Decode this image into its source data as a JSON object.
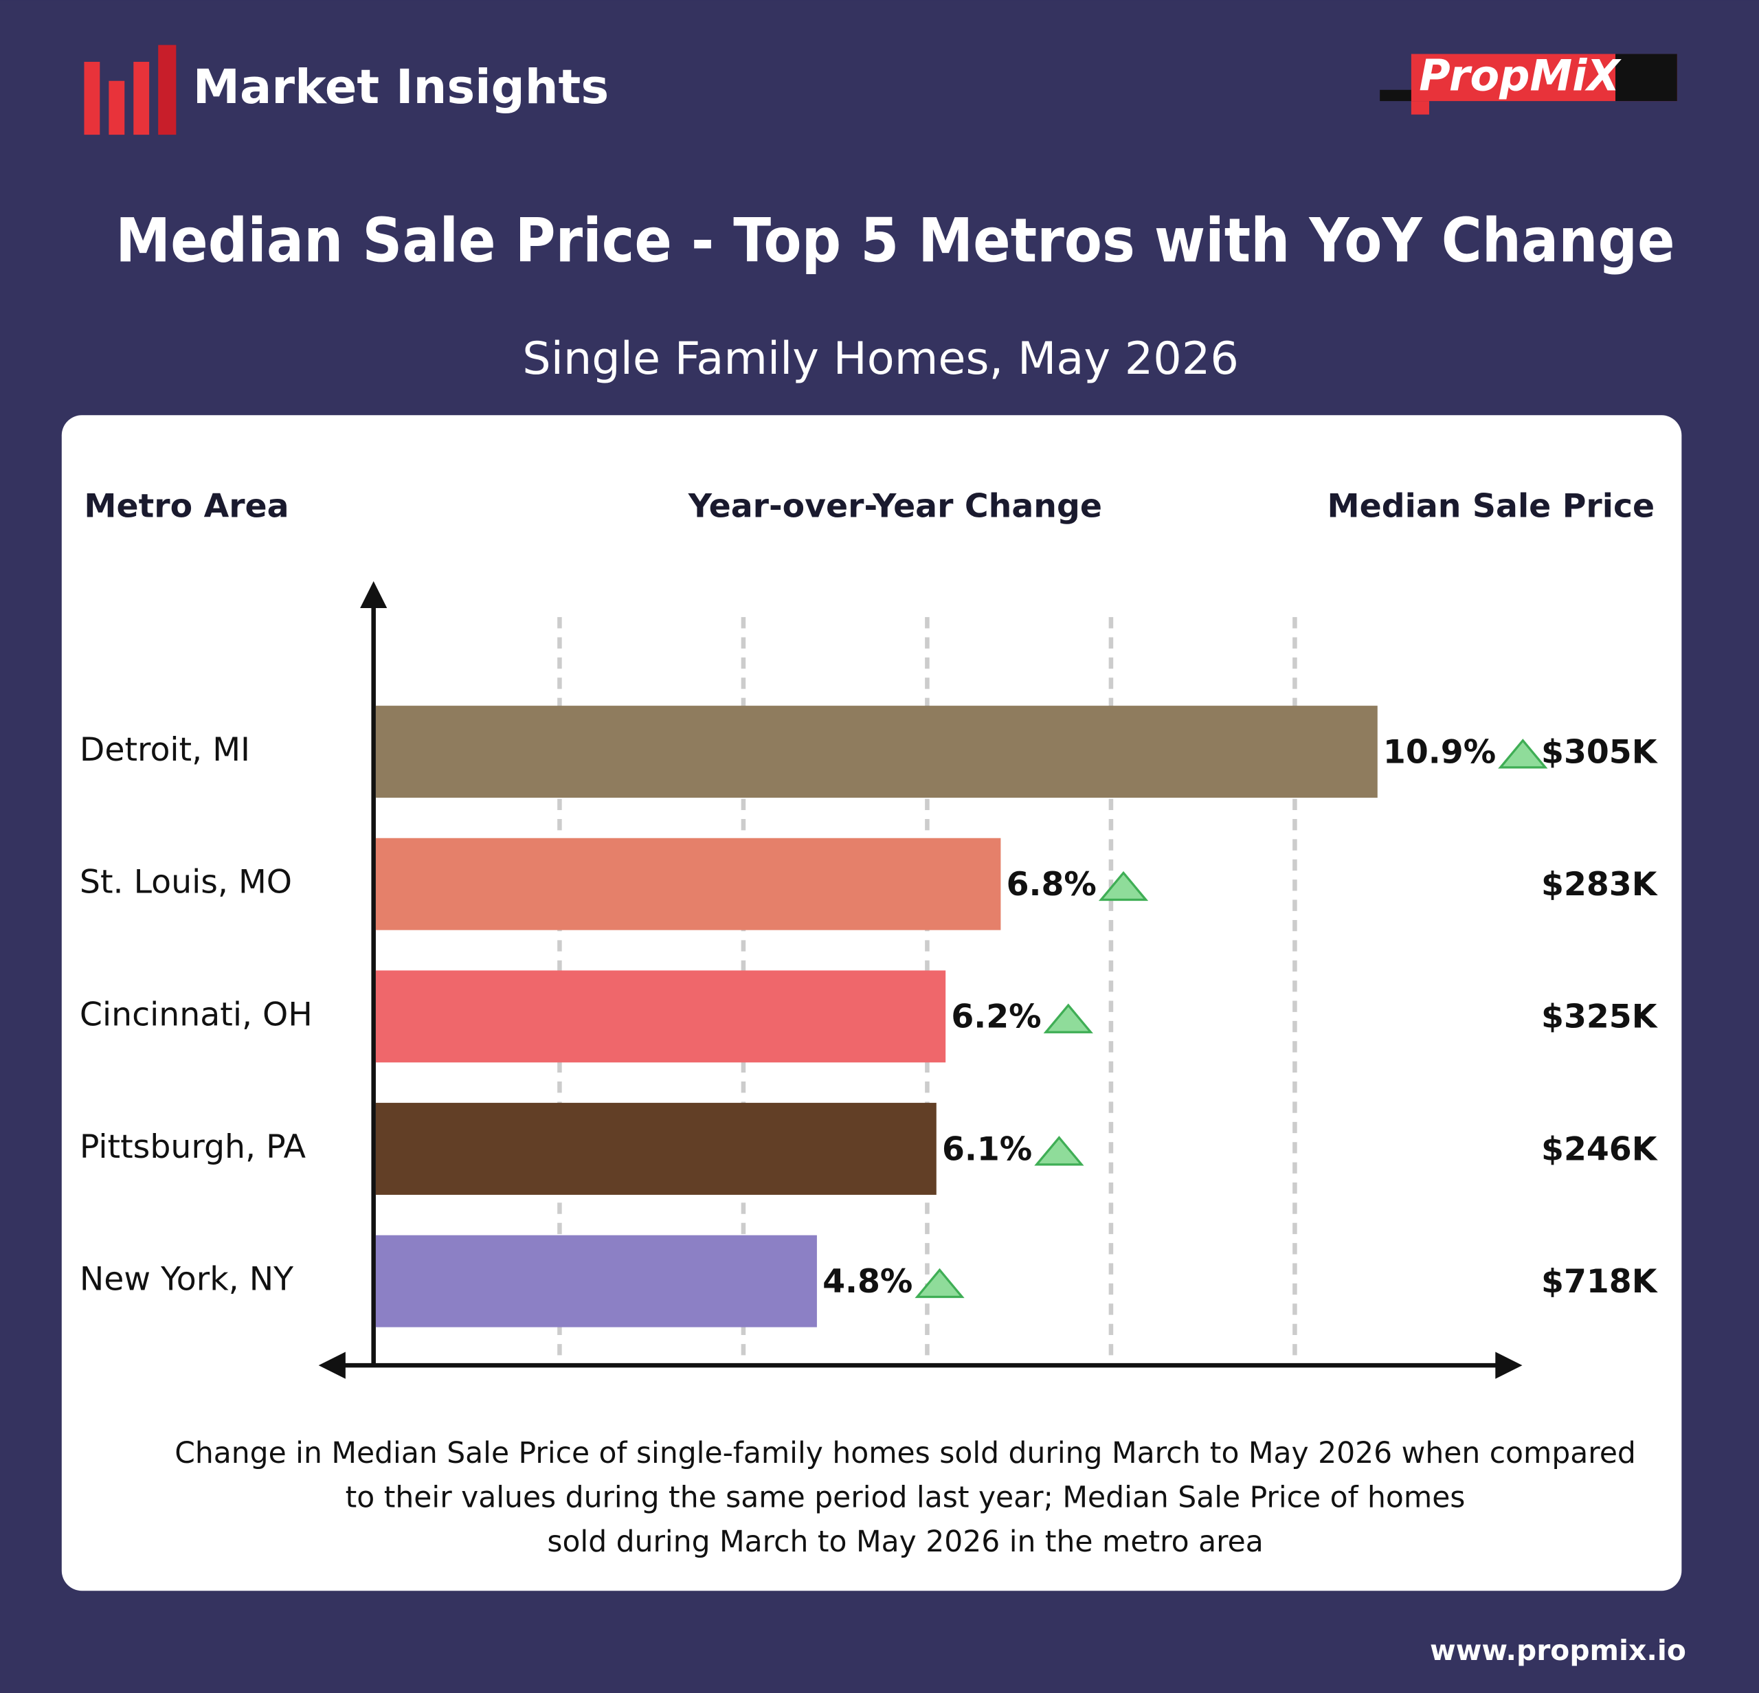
{
  "brand": "Market Insights",
  "logo": "PropMiX",
  "chart_data": {
    "type": "bar",
    "orientation": "horizontal",
    "title": "Median Sale Price - Top 5 Metros with YoY Change",
    "subtitle": "Single Family Homes, May 2026",
    "category_header": "Metro Area",
    "categories": [
      "Detroit, MI",
      "St. Louis, MO",
      "Cincinnati, OH",
      "Pittsburgh, PA",
      "New York, NY"
    ],
    "series": [
      {
        "name": "Year-over-Year Change",
        "colors": [
          "#8f7c5e",
          "#e5806a",
          "#ef676b",
          "#623f26",
          "#8c80c5"
        ],
        "values": [
          10.9,
          6.8,
          6.2,
          6.1,
          4.8
        ],
        "value_labels": [
          "10.9%",
          "6.8%",
          "6.2%",
          "6.1%",
          "4.8%"
        ]
      }
    ],
    "price": {
      "name": "Median Sale Price",
      "values": [
        305000,
        283000,
        325000,
        246000,
        718000
      ],
      "value_labels": [
        "$305K",
        "$283K",
        "$325K",
        "$246K",
        "$718K"
      ]
    },
    "xlim": [
      0,
      12.5
    ],
    "xticks": [
      2,
      4,
      6,
      8,
      10
    ],
    "grid": true,
    "footnote": [
      "Change in Median Sale Price of single-family homes sold during March to May 2026 when compared",
      "to their values during the same period last year; Median Sale Price of homes",
      "sold during March to May 2026 in the metro area"
    ]
  },
  "url": "www.propmix.io"
}
